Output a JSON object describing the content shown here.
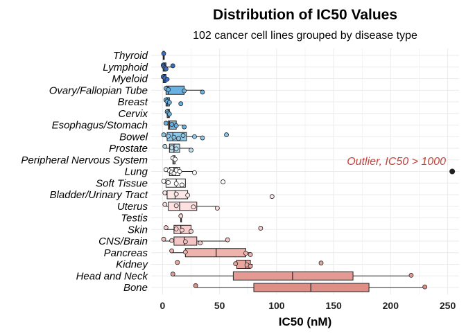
{
  "chart_data": {
    "type": "box",
    "title": "Distribution of IC50 Values",
    "subtitle": "102 cancer cell lines grouped by disease type",
    "xlabel": "IC50 (nM)",
    "ylabel": "",
    "xlim": [
      -10,
      260
    ],
    "xticks": [
      0,
      50,
      100,
      150,
      200,
      250
    ],
    "grid": true,
    "annotation": {
      "text": "Outlier, IC50 > 1000",
      "x": 254,
      "category": "Lung",
      "color": "#c8413b"
    },
    "categories": [
      {
        "name": "Thyroid",
        "color": "#3b6fc4",
        "box": [
          0.5,
          1,
          1.5
        ],
        "whisker": [
          0.5,
          1.5
        ],
        "points": [
          1
        ]
      },
      {
        "name": "Lymphoid",
        "color": "#3b6fc4",
        "box": [
          0.5,
          1.5,
          3
        ],
        "whisker": [
          0.5,
          9
        ],
        "points": [
          0.5,
          1,
          2,
          3,
          9
        ]
      },
      {
        "name": "Myeloid",
        "color": "#3b6fc4",
        "box": [
          0.5,
          1.5,
          3
        ],
        "whisker": [
          0.5,
          4
        ],
        "points": [
          0.5,
          2,
          4
        ]
      },
      {
        "name": "Ovary/Fallopian Tube",
        "color": "#69b1e0",
        "box": [
          3,
          5,
          19
        ],
        "whisker": [
          3,
          35
        ],
        "points": [
          3,
          5,
          19,
          35
        ]
      },
      {
        "name": "Breast",
        "color": "#69b1e0",
        "box": [
          3,
          4,
          6
        ],
        "whisker": [
          3,
          6
        ],
        "points": [
          3,
          4,
          6,
          16
        ]
      },
      {
        "name": "Cervix",
        "color": "#69b1e0",
        "box": [
          4,
          5,
          6
        ],
        "whisker": [
          4,
          6
        ],
        "points": [
          4,
          5,
          6
        ]
      },
      {
        "name": "Esophagus/Stomach",
        "color": "#69b1e0",
        "box": [
          5,
          6,
          12
        ],
        "whisker": [
          3,
          19
        ],
        "points": [
          3,
          8,
          12,
          19
        ]
      },
      {
        "name": "Bowel",
        "color": "#8ec7e8",
        "box": [
          4,
          9,
          21
        ],
        "whisker": [
          1,
          35
        ],
        "points": [
          1,
          5,
          10,
          14,
          18,
          28,
          35,
          56
        ]
      },
      {
        "name": "Prostate",
        "color": "#bcdff0",
        "box": [
          6,
          10,
          15
        ],
        "whisker": [
          2,
          25
        ],
        "points": [
          2,
          8,
          12,
          25
        ]
      },
      {
        "name": "Peripheral Nervous System",
        "color": "#ffffff",
        "box": [
          9,
          10,
          11
        ],
        "whisker": [
          9,
          11
        ],
        "points": [
          9,
          11
        ]
      },
      {
        "name": "Lung",
        "color": "#ffffff",
        "box": [
          6,
          10,
          15
        ],
        "whisker": [
          3,
          28
        ],
        "points": [
          3,
          6,
          8,
          10,
          12,
          15,
          28
        ]
      },
      {
        "name": "Soft Tissue",
        "color": "#ffffff",
        "box": [
          3,
          12,
          20
        ],
        "whisker": [
          1,
          20
        ],
        "points": [
          1,
          5,
          12,
          17,
          53
        ]
      },
      {
        "name": "Bladder/Urinary Tract",
        "color": "#fde8e8",
        "box": [
          4,
          11,
          22
        ],
        "whisker": [
          1,
          22
        ],
        "points": [
          2,
          12,
          22,
          96
        ]
      },
      {
        "name": "Uterus",
        "color": "#fde0e0",
        "box": [
          5,
          15,
          30
        ],
        "whisker": [
          1,
          48
        ],
        "points": [
          2,
          12,
          27,
          48
        ]
      },
      {
        "name": "Testis",
        "color": "#fad4d4",
        "box": [
          16,
          16,
          16
        ],
        "whisker": [
          16,
          16
        ],
        "points": [
          16
        ]
      },
      {
        "name": "Skin",
        "color": "#f8cfcf",
        "box": [
          10,
          16,
          25
        ],
        "whisker": [
          2,
          25
        ],
        "points": [
          3,
          12,
          17,
          25,
          86
        ]
      },
      {
        "name": "CNS/Brain",
        "color": "#f5c5c5",
        "box": [
          10,
          19,
          30
        ],
        "whisker": [
          1,
          57
        ],
        "points": [
          1,
          8,
          20,
          33,
          57
        ]
      },
      {
        "name": "Pancreas",
        "color": "#efb3ad",
        "box": [
          20,
          47,
          73
        ],
        "whisker": [
          8,
          77
        ],
        "points": [
          8,
          20,
          73,
          77
        ]
      },
      {
        "name": "Kidney",
        "color": "#e9a59f",
        "box": [
          65,
          73,
          77
        ],
        "whisker": [
          63,
          79
        ],
        "points": [
          13,
          64,
          74,
          77,
          139
        ]
      },
      {
        "name": "Head and Neck",
        "color": "#e49a93",
        "box": [
          62,
          114,
          167
        ],
        "whisker": [
          9,
          218
        ],
        "points": [
          9,
          218
        ]
      },
      {
        "name": "Bone",
        "color": "#e08f86",
        "box": [
          80,
          130,
          181
        ],
        "whisker": [
          29,
          230
        ],
        "points": [
          29,
          230
        ]
      }
    ]
  }
}
